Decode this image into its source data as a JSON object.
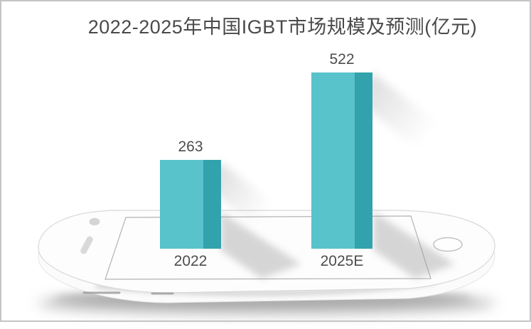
{
  "frame": {
    "border_color": "#c5c5c5"
  },
  "chart_data": {
    "type": "bar",
    "title": "2022-2025年中国IGBT市场规模及预测(亿元)",
    "categories": [
      "2022",
      "2025E"
    ],
    "values": [
      263,
      522
    ],
    "unit": "亿元",
    "xlabel": "",
    "ylabel": "",
    "ylim": [
      0,
      560
    ],
    "gridlines": false,
    "legend": false,
    "value_labels_shown": true,
    "style_3d": true,
    "background_art": "white smartphone lying flat in perspective",
    "colors": {
      "bar_front": "#59c3cc",
      "bar_side": "#32a2ac",
      "title_text": "#4a4a4a",
      "label_text": "#4d4d4d"
    }
  }
}
